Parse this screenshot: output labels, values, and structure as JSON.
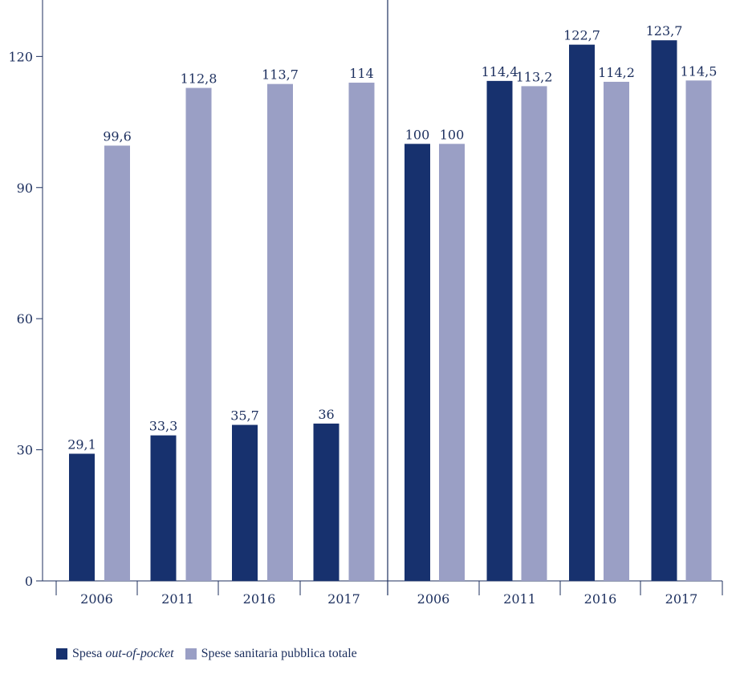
{
  "colors": {
    "dark": "#17316e",
    "light": "#9a9fc5",
    "axis": "#1c2f5e",
    "text": "#1c2f5e"
  },
  "legend": {
    "series1_prefix": "Spesa ",
    "series1_italic": "out-of-pocket",
    "series2": "Spese sanitaria pubblica totale"
  },
  "chart_data": {
    "type": "bar",
    "y_ticks": [
      0,
      30,
      60,
      90,
      120
    ],
    "ylim": [
      0,
      130
    ],
    "panels": [
      {
        "categories": [
          "2006",
          "2011",
          "2016",
          "2017"
        ],
        "series": [
          {
            "name": "Spesa out-of-pocket",
            "values": [
              29.1,
              33.3,
              35.7,
              36
            ],
            "labels": [
              "29,1",
              "33,3",
              "35,7",
              "36"
            ]
          },
          {
            "name": "Spese sanitaria pubblica totale",
            "values": [
              99.6,
              112.8,
              113.7,
              114
            ],
            "labels": [
              "99,6",
              "112,8",
              "113,7",
              "114"
            ]
          }
        ]
      },
      {
        "categories": [
          "2006",
          "2011",
          "2016",
          "2017"
        ],
        "series": [
          {
            "name": "Spesa out-of-pocket",
            "values": [
              100,
              114.4,
              122.7,
              123.7
            ],
            "labels": [
              "100",
              "114,4",
              "122,7",
              "123,7"
            ]
          },
          {
            "name": "Spese sanitaria pubblica totale",
            "values": [
              100,
              113.2,
              114.2,
              114.5
            ],
            "labels": [
              "100",
              "113,2",
              "114,2",
              "114,5"
            ]
          }
        ]
      }
    ]
  }
}
